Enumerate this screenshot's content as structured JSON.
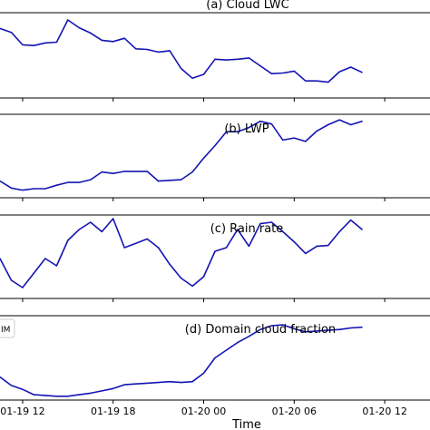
{
  "chart_data": [
    {
      "type": "line",
      "title": "(a) Cloud LWC",
      "color": "#1414b4",
      "x": [
        0,
        0.5,
        1,
        1.5,
        2,
        2.5,
        3,
        3.5,
        4,
        4.5,
        5,
        5.5,
        6,
        6.5,
        7,
        7.5,
        8,
        8.5,
        9,
        9.5,
        10,
        10.5,
        11,
        11.5,
        12,
        12.5,
        13,
        13.5,
        14,
        14.5,
        15,
        15.5,
        16
      ],
      "values": [
        0.86,
        0.8,
        0.61,
        0.6,
        0.64,
        0.65,
        0.99,
        0.87,
        0.79,
        0.68,
        0.66,
        0.71,
        0.55,
        0.54,
        0.5,
        0.52,
        0.25,
        0.1,
        0.16,
        0.39,
        0.38,
        0.39,
        0.41,
        0.29,
        0.17,
        0.18,
        0.21,
        0.06,
        0.06,
        0.04,
        0.2,
        0.27,
        0.19
      ],
      "ylim": [
        -0.2,
        1.1
      ]
    },
    {
      "type": "line",
      "title": "(b) LWP",
      "color": "#1414b4",
      "x": [
        0,
        0.5,
        1,
        1.5,
        2,
        2.5,
        3,
        3.5,
        4,
        4.5,
        5,
        5.5,
        6,
        6.5,
        7,
        7.5,
        8,
        8.5,
        9,
        9.5,
        10,
        10.5,
        11,
        11.5,
        12,
        12.5,
        13,
        13.5,
        14,
        14.5,
        15,
        15.5,
        16
      ],
      "values": [
        0.14,
        0.04,
        0.01,
        0.03,
        0.03,
        0.08,
        0.12,
        0.12,
        0.16,
        0.27,
        0.25,
        0.28,
        0.28,
        0.28,
        0.14,
        0.15,
        0.16,
        0.27,
        0.47,
        0.65,
        0.85,
        0.85,
        0.91,
        1.0,
        0.96,
        0.73,
        0.76,
        0.71,
        0.86,
        0.95,
        1.02,
        0.95,
        1.0
      ],
      "ylim": [
        -0.1,
        1.1
      ]
    },
    {
      "type": "line",
      "title": "(c) Rain rate",
      "color": "#1414b4",
      "x": [
        0,
        0.5,
        1,
        1.5,
        2,
        2.5,
        3,
        3.5,
        4,
        4.5,
        5,
        5.5,
        6,
        6.5,
        7,
        7.5,
        8,
        8.5,
        9,
        9.5,
        10,
        10.5,
        11,
        11.5,
        12,
        12.5,
        13,
        13.5,
        14,
        14.5,
        15,
        15.5,
        16
      ],
      "values": [
        0.45,
        0.15,
        0.05,
        0.25,
        0.45,
        0.35,
        0.7,
        0.85,
        0.95,
        0.82,
        1.0,
        0.6,
        0.66,
        0.72,
        0.6,
        0.37,
        0.18,
        0.07,
        0.2,
        0.55,
        0.6,
        0.85,
        0.62,
        0.93,
        0.95,
        0.82,
        0.68,
        0.52,
        0.62,
        0.63,
        0.82,
        0.98,
        0.85
      ],
      "ylim": [
        -0.1,
        1.05
      ]
    },
    {
      "type": "line",
      "title": "(d) Domain cloud fraction",
      "xlabel": "Time",
      "legend_label": "IM",
      "color": "#1414b4",
      "x": [
        0,
        0.5,
        1,
        1.5,
        2,
        2.5,
        3,
        3.5,
        4,
        4.5,
        5,
        5.5,
        6,
        6.5,
        7,
        7.5,
        8,
        8.5,
        9,
        9.5,
        10,
        10.5,
        11,
        11.5,
        12,
        12.5,
        13,
        13.5,
        14,
        14.5,
        15,
        15.5,
        16
      ],
      "values": [
        0.25,
        0.14,
        0.09,
        0.02,
        0.01,
        0.0,
        0.0,
        0.02,
        0.04,
        0.07,
        0.1,
        0.15,
        0.16,
        0.17,
        0.18,
        0.19,
        0.18,
        0.19,
        0.3,
        0.5,
        0.6,
        0.7,
        0.78,
        0.87,
        0.92,
        0.93,
        0.88,
        0.84,
        0.85,
        0.86,
        0.87,
        0.89,
        0.9
      ],
      "ylim": [
        -0.05,
        1.05
      ]
    }
  ],
  "x_ticks": [
    {
      "value": 1,
      "label": "01-19 12"
    },
    {
      "value": 5,
      "label": "01-19 18"
    },
    {
      "value": 9,
      "label": "01-20 00"
    },
    {
      "value": 13,
      "label": "01-20 06"
    },
    {
      "value": 17,
      "label": "01-20 12"
    }
  ],
  "xlim": [
    0,
    19
  ]
}
